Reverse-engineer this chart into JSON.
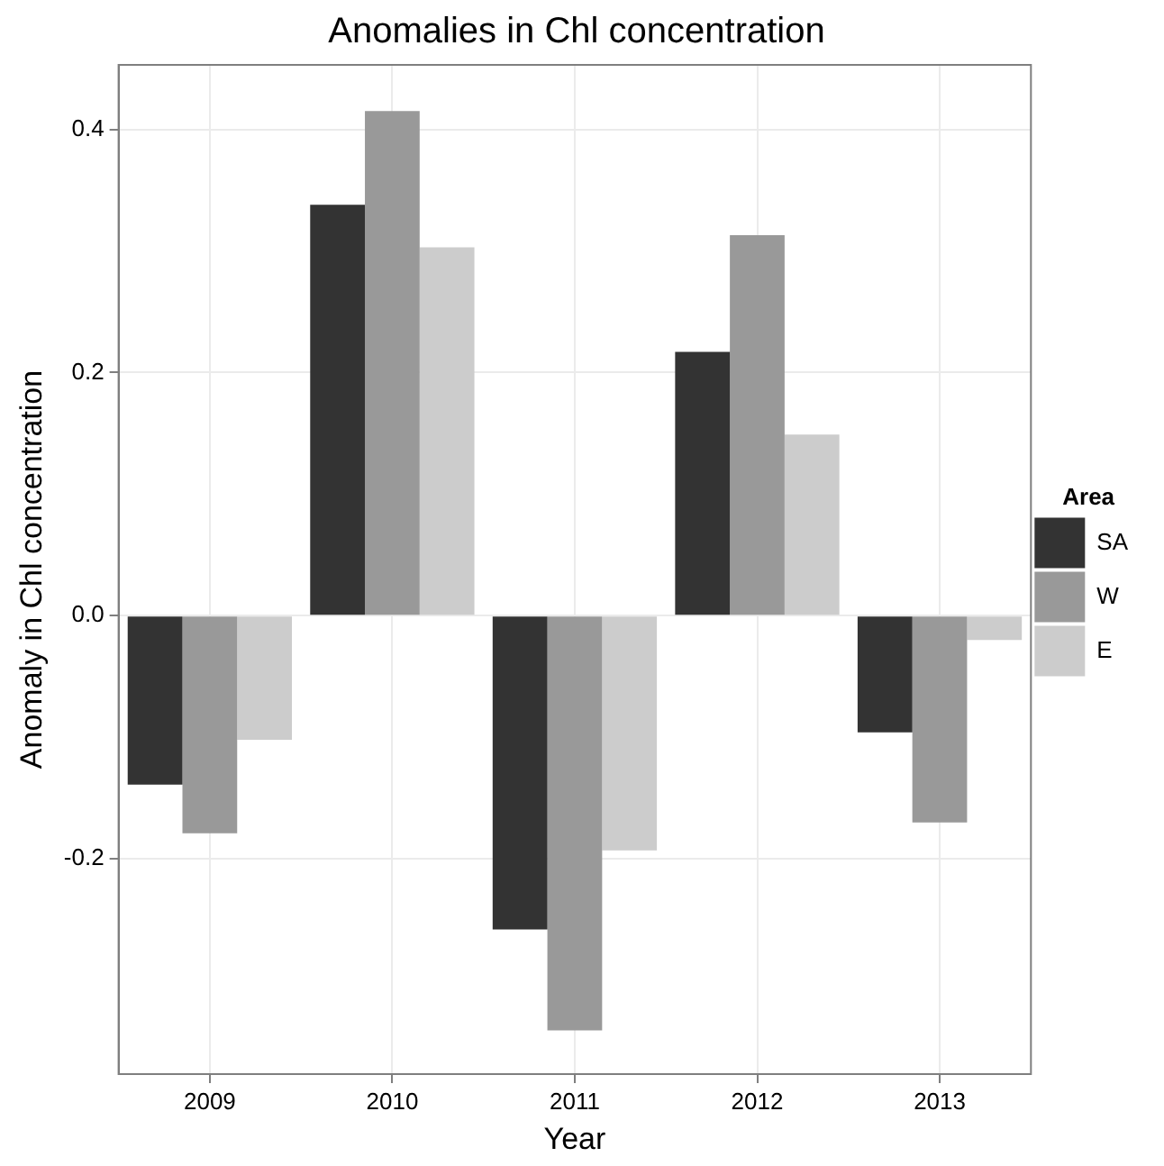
{
  "chart_data": {
    "type": "bar",
    "title": "Anomalies in Chl concentration",
    "xlabel": "Year",
    "ylabel": "Anomaly in Chl concentration",
    "legend_title": "Area",
    "categories": [
      "2009",
      "2010",
      "2011",
      "2012",
      "2013"
    ],
    "series": [
      {
        "name": "SA",
        "color": "#333333",
        "values": [
          -0.139,
          0.338,
          -0.258,
          0.217,
          -0.096
        ]
      },
      {
        "name": "W",
        "color": "#999999",
        "values": [
          -0.179,
          0.415,
          -0.341,
          0.313,
          -0.17
        ]
      },
      {
        "name": "E",
        "color": "#cccccc",
        "values": [
          -0.102,
          0.303,
          -0.193,
          0.149,
          -0.02
        ]
      }
    ],
    "ylim": [
      -0.377,
      0.453
    ],
    "yticks": [
      {
        "value": -0.2,
        "label": "-0.2"
      },
      {
        "value": 0,
        "label": "0.0"
      },
      {
        "value": 0.2,
        "label": "0.2"
      },
      {
        "value": 0.4,
        "label": "0.4"
      }
    ],
    "grid": true,
    "legend": "right"
  }
}
